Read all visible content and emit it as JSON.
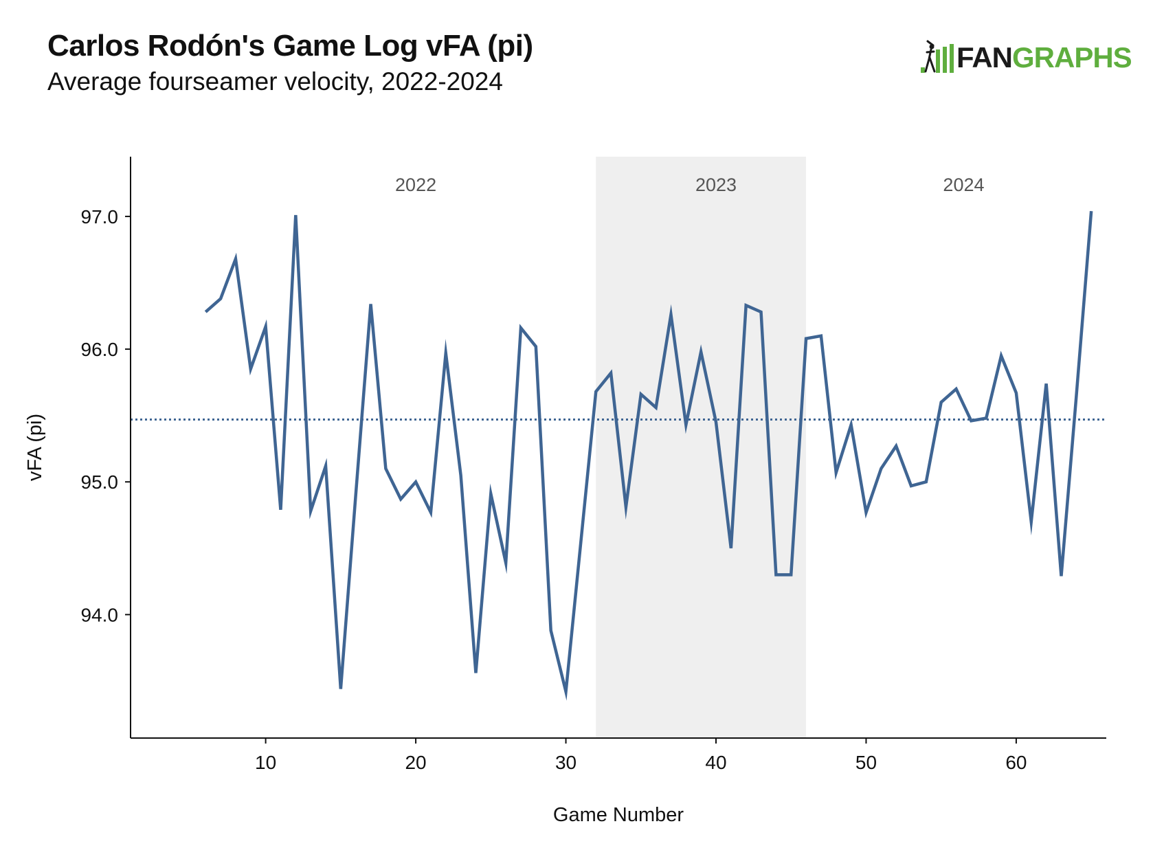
{
  "header": {
    "title": "Carlos Rodón's Game Log vFA (pi)",
    "subtitle": "Average fourseamer velocity, 2022-2024",
    "logo_text_fan": "FAN",
    "logo_text_graphs": "GRAPHS",
    "logo_icon": "fangraphs-logo-icon"
  },
  "colors": {
    "line": "#3f6593",
    "mean_line": "#3f6593",
    "shade": "#efefef",
    "axis": "#111111",
    "brand_green": "#5fae3e"
  },
  "chart_data": {
    "type": "line",
    "title": "Carlos Rodón's Game Log vFA (pi)",
    "subtitle": "Average fourseamer velocity, 2022-2024",
    "xlabel": "Game Number",
    "ylabel": "vFA (pi)",
    "xlim": [
      1,
      66
    ],
    "ylim": [
      93.07,
      97.45
    ],
    "xticks": [
      10,
      20,
      30,
      40,
      50,
      60
    ],
    "yticks": [
      94.0,
      95.0,
      96.0,
      97.0
    ],
    "ytick_labels": [
      "94.0",
      "95.0",
      "96.0",
      "97.0"
    ],
    "grid": false,
    "legend": "none",
    "mean_line": 95.47,
    "seasons": [
      {
        "label": "2022",
        "start": 1,
        "end": 32,
        "shaded": false,
        "label_x": 20
      },
      {
        "label": "2023",
        "start": 32,
        "end": 46,
        "shaded": true,
        "label_x": 40
      },
      {
        "label": "2024",
        "start": 46,
        "end": 66,
        "shaded": false,
        "label_x": 56.5
      }
    ],
    "x": [
      6,
      7,
      8,
      9,
      10,
      11,
      12,
      13,
      14,
      15,
      16,
      17,
      18,
      19,
      20,
      21,
      22,
      23,
      24,
      25,
      26,
      27,
      28,
      29,
      30,
      31,
      32,
      33,
      34,
      35,
      36,
      37,
      38,
      39,
      40,
      41,
      42,
      43,
      44,
      45,
      46,
      47,
      48,
      49,
      50,
      51,
      52,
      53,
      54,
      55,
      56,
      57,
      58,
      59,
      60,
      61,
      62,
      63,
      64,
      65
    ],
    "series": [
      {
        "values": [
          96.28,
          96.38,
          96.68,
          95.85,
          96.17,
          94.79,
          97.01,
          94.78,
          95.12,
          93.44,
          94.9,
          96.34,
          95.1,
          94.87,
          95.0,
          94.77,
          95.97,
          95.05,
          93.56,
          94.91,
          94.39,
          96.16,
          96.02,
          93.88,
          93.42,
          94.55,
          95.68,
          95.82,
          94.81,
          95.66,
          95.56,
          96.26,
          95.43,
          95.98,
          95.45,
          94.5,
          96.33,
          96.28,
          94.3,
          94.3,
          96.08,
          96.1,
          95.07,
          95.43,
          94.77,
          95.1,
          95.27,
          94.97,
          95.0,
          95.6,
          95.7,
          95.46,
          95.48,
          95.95,
          95.67,
          94.7,
          95.74,
          94.29,
          95.64,
          97.04
        ]
      }
    ]
  }
}
